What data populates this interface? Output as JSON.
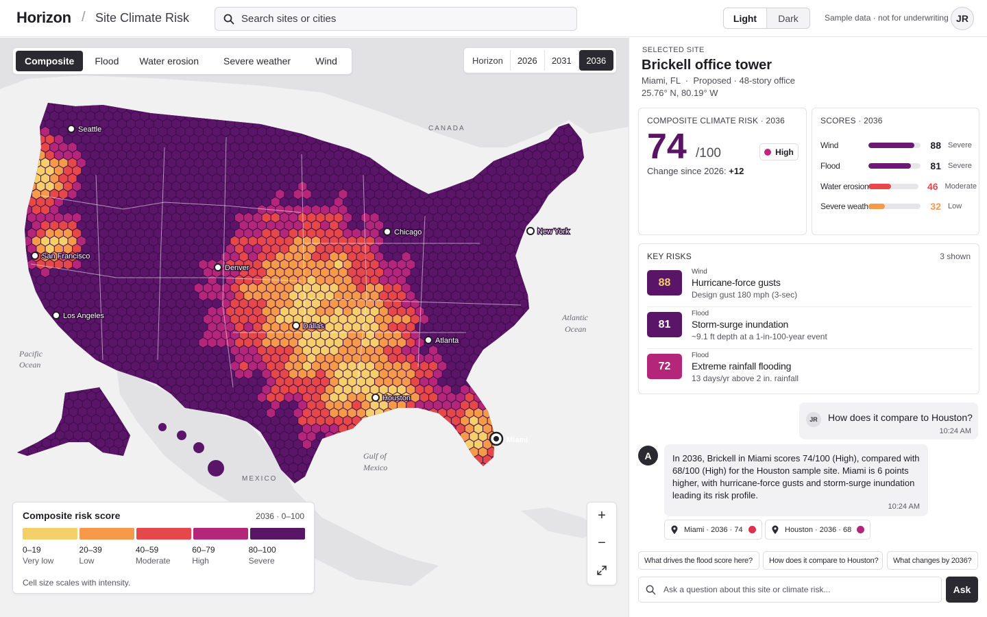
{
  "header": {
    "brand": "Horizon",
    "separator": "/",
    "breadcrumb": "Site Climate Risk",
    "search_placeholder": "Search sites or cities",
    "theme_light": "Light",
    "theme_dark": "Dark",
    "notice": "Sample data · not for underwriting",
    "avatar_initials": "JR"
  },
  "map": {
    "layer_tabs": [
      "Composite",
      "Flood",
      "Water erosion",
      "Severe weather",
      "Wind"
    ],
    "active_layer": "Composite",
    "horizon_label": "Horizon",
    "years": [
      "2026",
      "2031",
      "2036"
    ],
    "active_year": "2036",
    "region_labels": {
      "canada": "CANADA",
      "mexico": "MEXICO",
      "pacific": [
        "Pacific",
        "Ocean"
      ],
      "atlantic": [
        "Atlantic",
        "Ocean"
      ],
      "gulf": [
        "Gulf of",
        "Mexico"
      ]
    },
    "cities": [
      "Seattle",
      "San Francisco",
      "Los Angeles",
      "Denver",
      "Chicago",
      "New York",
      "Dallas",
      "Atlanta",
      "Houston",
      "Miami"
    ],
    "legend": {
      "title": "Composite risk score",
      "range": "2036 · 0–100",
      "bins": [
        {
          "range": "0–19",
          "name": "Very low",
          "color": "#f5cf6b"
        },
        {
          "range": "20–39",
          "name": "Low",
          "color": "#f59a4a"
        },
        {
          "range": "40–59",
          "name": "Moderate",
          "color": "#e6484a"
        },
        {
          "range": "60–79",
          "name": "High",
          "color": "#b3267a"
        },
        {
          "range": "80–100",
          "name": "Severe",
          "color": "#5a1468"
        }
      ],
      "note": "Cell size scales with intensity."
    },
    "zoom_in": "+",
    "zoom_out": "−"
  },
  "site": {
    "label": "SELECTED SITE",
    "name": "Brickell office tower",
    "subtitle": "Miami, FL  ·  Proposed · 48-story office",
    "coords": "25.76° N, 80.19° W"
  },
  "composite": {
    "header": "COMPOSITE CLIMATE RISK · 2036",
    "score": "74",
    "out_of": "/100",
    "level": "High",
    "change_label": "Change since 2026:",
    "change_value": "+12"
  },
  "scores": {
    "header": "SCORES · 2036",
    "items": [
      {
        "name": "Wind",
        "value": 88,
        "band": "Severe",
        "color": "#6b1a72"
      },
      {
        "name": "Flood",
        "value": 81,
        "band": "Severe",
        "color": "#6b1a72"
      },
      {
        "name": "Water erosion",
        "value": 46,
        "band": "Moderate",
        "color": "#e5474a"
      },
      {
        "name": "Severe weather",
        "value": 32,
        "band": "Low",
        "color": "#f59a4a"
      }
    ]
  },
  "key_risks": {
    "header": "KEY RISKS",
    "count": "3 shown",
    "items": [
      {
        "score": "88",
        "category": "Wind",
        "title": "Hurricane-force gusts",
        "detail": "Design gust 180 mph (3-sec)",
        "color": "#5a1468",
        "text_color": "#f5cf6b"
      },
      {
        "score": "81",
        "category": "Flood",
        "title": "Storm-surge inundation",
        "detail": "~9.1 ft depth at a 1-in-100-year event",
        "color": "#5a1468",
        "text_color": "#ffffff"
      },
      {
        "score": "72",
        "category": "Flood",
        "title": "Extreme rainfall flooding",
        "detail": "13 days/yr above 2 in. rainfall",
        "color": "#b3267a",
        "text_color": "#ffffff"
      }
    ]
  },
  "chat": {
    "user_initials": "JR",
    "user_message": "How does it compare to Houston?",
    "user_time": "10:24 AM",
    "assistant_initial": "A",
    "assistant_message": "In 2036, Brickell in Miami scores 74/100 (High), compared with 68/100 (High) for the Houston sample site. Miami is 6 points higher, with hurricane-force gusts and storm-surge inundation leading its risk profile.",
    "assistant_time": "10:24 AM",
    "chips": [
      {
        "label": "Miami · 2036 · 74",
        "color": "#e0304f"
      },
      {
        "label": "Houston · 2036 · 68",
        "color": "#b3267a"
      }
    ],
    "suggestions": [
      "What drives the flood score here?",
      "How does it compare to Houston?",
      "What changes by 2036?"
    ],
    "input_placeholder": "Ask a question about this site or climate risk...",
    "ask_label": "Ask"
  }
}
